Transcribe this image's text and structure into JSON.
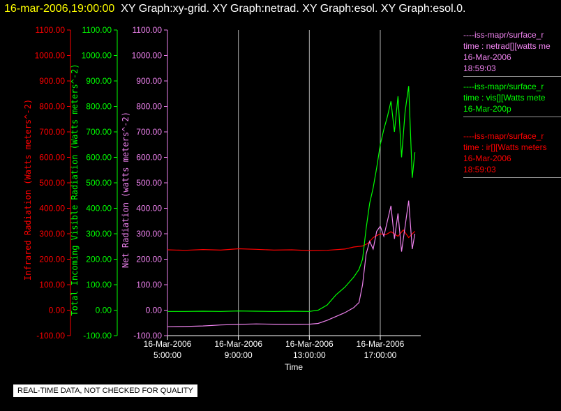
{
  "header": {
    "timestamp": "16-mar-2006,19:00:00",
    "titles": "XY Graph:xy-grid.  XY Graph:netrad.  XY Graph:esol.  XY Graph:esol.0."
  },
  "footer_note": "REAL-TIME DATA, NOT CHECKED FOR QUALITY",
  "legend": [
    {
      "lines": [
        "----iss-mapr/surface_r",
        "time : netrad[][watts me",
        "16-Mar-2006",
        "18:59:03"
      ],
      "color": "#ee82ee"
    },
    {
      "lines": [
        "----iss-mapr/surface_r",
        "time : vis[][Watts mete",
        "16-Mar-200p"
      ],
      "color": "#00ff00"
    },
    {
      "lines": [
        "----iss-mapr/surface_r",
        "time : ir[][Watts meters",
        "16-Mar-2006",
        "18:59:03"
      ],
      "color": "#ff0000"
    }
  ],
  "chart_data": {
    "type": "line",
    "title": "",
    "xlabel": "Time",
    "x_ticks": [
      {
        "date": "16-Mar-2006",
        "time": "5:00:00",
        "hour": 5
      },
      {
        "date": "16-Mar-2006",
        "time": "9:00:00",
        "hour": 9
      },
      {
        "date": "16-Mar-2006",
        "time": "13:00:00",
        "hour": 13
      },
      {
        "date": "16-Mar-2006",
        "time": "17:00:00",
        "hour": 17
      }
    ],
    "xlim": [
      5,
      19.1
    ],
    "ylim": [
      -100,
      1100
    ],
    "y_ticks": [
      "-100.00",
      "0.00",
      "100.00",
      "200.00",
      "300.00",
      "400.00",
      "500.00",
      "600.00",
      "700.00",
      "800.00",
      "900.00",
      "1000.00",
      "1100.00"
    ],
    "vertical_grid_hours": [
      9,
      13,
      17
    ],
    "axes": [
      {
        "label": "Infrared Radiation (Watts meters^-2)",
        "color": "#ff0000"
      },
      {
        "label": "Total Incoming Visible Radiation (Watts meters^-2)",
        "color": "#00ff00"
      },
      {
        "label": "Net Radiation (watts meters^-2)",
        "color": "#ee82ee"
      }
    ],
    "series": [
      {
        "name": "ir",
        "color": "#ff0000",
        "x": [
          5,
          6,
          7,
          8,
          9,
          10,
          11,
          12,
          13,
          14,
          15,
          15.5,
          16,
          16.3,
          16.6,
          17,
          17.3,
          17.6,
          18,
          18.3,
          18.6,
          18.95
        ],
        "y": [
          237,
          235,
          238,
          236,
          241,
          239,
          236,
          237,
          234,
          235,
          240,
          248,
          252,
          262,
          285,
          300,
          296,
          308,
          290,
          315,
          285,
          310
        ]
      },
      {
        "name": "vis",
        "color": "#00ff00",
        "x": [
          5,
          6,
          7,
          8,
          9,
          10,
          11,
          12,
          13,
          13.5,
          14,
          14.5,
          15,
          15.5,
          15.8,
          16,
          16.2,
          16.4,
          16.6,
          16.8,
          17,
          17.2,
          17.4,
          17.6,
          17.8,
          18,
          18.2,
          18.4,
          18.6,
          18.8,
          18.95
        ],
        "y": [
          -5,
          -5,
          -4,
          -5,
          -3,
          -4,
          -5,
          -4,
          -5,
          0,
          20,
          60,
          90,
          130,
          160,
          200,
          320,
          420,
          480,
          560,
          650,
          710,
          760,
          820,
          700,
          840,
          600,
          780,
          880,
          520,
          620
        ]
      },
      {
        "name": "netrad",
        "color": "#ee82ee",
        "x": [
          5,
          6,
          7,
          8,
          9,
          10,
          11,
          12,
          13,
          13.5,
          14,
          14.5,
          15,
          15.5,
          15.8,
          16,
          16.2,
          16.4,
          16.6,
          16.8,
          17,
          17.2,
          17.4,
          17.6,
          17.8,
          18,
          18.2,
          18.4,
          18.6,
          18.8,
          18.95
        ],
        "y": [
          -65,
          -64,
          -62,
          -58,
          -56,
          -54,
          -55,
          -56,
          -55,
          -52,
          -40,
          -25,
          -10,
          10,
          30,
          100,
          220,
          270,
          240,
          310,
          330,
          290,
          350,
          410,
          280,
          380,
          230,
          330,
          430,
          240,
          300
        ]
      }
    ]
  }
}
